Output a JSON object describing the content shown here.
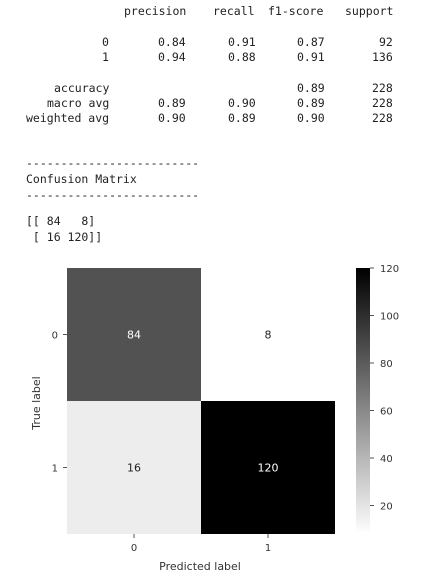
{
  "report": {
    "header": [
      "precision",
      "recall",
      "f1-score",
      "support"
    ],
    "rows": [
      {
        "label": "0",
        "precision": "0.84",
        "recall": "0.91",
        "f1": "0.87",
        "support": "92"
      },
      {
        "label": "1",
        "precision": "0.94",
        "recall": "0.88",
        "f1": "0.91",
        "support": "136"
      }
    ],
    "accuracy": {
      "label": "accuracy",
      "f1": "0.89",
      "support": "228"
    },
    "macro": {
      "label": "macro avg",
      "precision": "0.89",
      "recall": "0.90",
      "f1": "0.89",
      "support": "228"
    },
    "weighted": {
      "label": "weighted avg",
      "precision": "0.90",
      "recall": "0.89",
      "f1": "0.90",
      "support": "228"
    }
  },
  "section": {
    "separator": "-------------------------",
    "title": "Confusion Matrix"
  },
  "matrix_text": {
    "line1": "[[ 84   8]",
    "line2": " [ 16 120]]"
  },
  "chart_data": {
    "type": "heatmap",
    "title": "",
    "xlabel": "Predicted label",
    "ylabel": "True label",
    "x_categories": [
      "0",
      "1"
    ],
    "y_categories": [
      "0",
      "1"
    ],
    "values": [
      [
        84,
        8
      ],
      [
        16,
        120
      ]
    ],
    "colormap": "gray_r",
    "vmin": 8,
    "vmax": 120,
    "colorbar_ticks": [
      20,
      40,
      60,
      80,
      100,
      120
    ],
    "colors": {
      "low": "#ffffff",
      "high": "#000000"
    }
  }
}
